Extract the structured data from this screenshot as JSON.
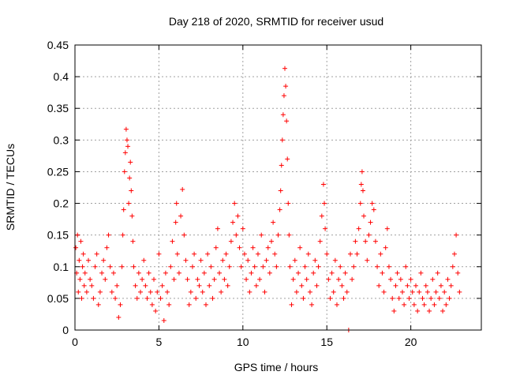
{
  "chart_data": {
    "type": "scatter",
    "title": "Day 218 of 2020, SRMTID for receiver usud",
    "xlabel": "GPS time / hours",
    "ylabel": "SRMTID / TECUs",
    "xlim": [
      0,
      24.2
    ],
    "ylim": [
      0,
      0.45
    ],
    "xticks": [
      "0",
      "5",
      "10",
      "15",
      "20"
    ],
    "xtick_values": [
      0,
      5,
      10,
      15,
      20
    ],
    "yticks": [
      "0",
      "0.05",
      "0.1",
      "0.15",
      "0.2",
      "0.25",
      "0.3",
      "0.35",
      "0.4",
      "0.45"
    ],
    "ytick_values": [
      0,
      0.05,
      0.1,
      0.15,
      0.2,
      0.25,
      0.3,
      0.35,
      0.4,
      0.45
    ],
    "grid": true,
    "marker": "plus",
    "color": "#ff0000",
    "series": [
      {
        "name": "SRMTID",
        "points": [
          [
            0.05,
            0.13
          ],
          [
            0.1,
            0.09
          ],
          [
            0.15,
            0.15
          ],
          [
            0.2,
            0.06
          ],
          [
            0.25,
            0.11
          ],
          [
            0.3,
            0.08
          ],
          [
            0.35,
            0.14
          ],
          [
            0.4,
            0.05
          ],
          [
            0.45,
            0.1
          ],
          [
            0.5,
            0.12
          ],
          [
            0.55,
            0.07
          ],
          [
            0.6,
            0.09
          ],
          [
            0.7,
            0.06
          ],
          [
            0.8,
            0.11
          ],
          [
            0.9,
            0.08
          ],
          [
            1.0,
            0.07
          ],
          [
            1.1,
            0.05
          ],
          [
            1.2,
            0.1
          ],
          [
            1.3,
            0.12
          ],
          [
            1.4,
            0.04
          ],
          [
            1.5,
            0.06
          ],
          [
            1.6,
            0.09
          ],
          [
            1.7,
            0.11
          ],
          [
            1.8,
            0.08
          ],
          [
            1.9,
            0.13
          ],
          [
            2.0,
            0.15
          ],
          [
            2.1,
            0.1
          ],
          [
            2.2,
            0.06
          ],
          [
            2.3,
            0.09
          ],
          [
            2.4,
            0.05
          ],
          [
            2.5,
            0.07
          ],
          [
            2.6,
            0.02
          ],
          [
            2.7,
            0.04
          ],
          [
            2.8,
            0.1
          ],
          [
            2.85,
            0.15
          ],
          [
            2.9,
            0.19
          ],
          [
            2.95,
            0.25
          ],
          [
            3.0,
            0.28
          ],
          [
            3.05,
            0.317
          ],
          [
            3.1,
            0.3
          ],
          [
            3.15,
            0.29
          ],
          [
            3.2,
            0.2
          ],
          [
            3.25,
            0.24
          ],
          [
            3.3,
            0.265
          ],
          [
            3.35,
            0.22
          ],
          [
            3.4,
            0.18
          ],
          [
            3.45,
            0.14
          ],
          [
            3.5,
            0.1
          ],
          [
            3.6,
            0.07
          ],
          [
            3.7,
            0.05
          ],
          [
            3.8,
            0.09
          ],
          [
            3.9,
            0.06
          ],
          [
            4.0,
            0.08
          ],
          [
            4.1,
            0.11
          ],
          [
            4.2,
            0.07
          ],
          [
            4.3,
            0.05
          ],
          [
            4.4,
            0.09
          ],
          [
            4.5,
            0.06
          ],
          [
            4.6,
            0.04
          ],
          [
            4.7,
            0.08
          ],
          [
            4.8,
            0.03
          ],
          [
            4.9,
            0.06
          ],
          [
            5.0,
            0.12
          ],
          [
            5.1,
            0.05
          ],
          [
            5.2,
            0.07
          ],
          [
            5.3,
            0.015
          ],
          [
            5.4,
            0.09
          ],
          [
            5.5,
            0.06
          ],
          [
            5.6,
            0.04
          ],
          [
            5.7,
            0.1
          ],
          [
            5.8,
            0.14
          ],
          [
            5.9,
            0.08
          ],
          [
            6.0,
            0.17
          ],
          [
            6.05,
            0.2
          ],
          [
            6.1,
            0.12
          ],
          [
            6.2,
            0.09
          ],
          [
            6.3,
            0.18
          ],
          [
            6.4,
            0.222
          ],
          [
            6.5,
            0.15
          ],
          [
            6.6,
            0.11
          ],
          [
            6.7,
            0.08
          ],
          [
            6.8,
            0.04
          ],
          [
            6.9,
            0.06
          ],
          [
            7.0,
            0.1
          ],
          [
            7.1,
            0.12
          ],
          [
            7.2,
            0.05
          ],
          [
            7.3,
            0.08
          ],
          [
            7.4,
            0.07
          ],
          [
            7.5,
            0.11
          ],
          [
            7.6,
            0.06
          ],
          [
            7.7,
            0.09
          ],
          [
            7.8,
            0.04
          ],
          [
            7.9,
            0.12
          ],
          [
            8.0,
            0.07
          ],
          [
            8.1,
            0.1
          ],
          [
            8.2,
            0.05
          ],
          [
            8.3,
            0.08
          ],
          [
            8.4,
            0.13
          ],
          [
            8.5,
            0.16
          ],
          [
            8.6,
            0.09
          ],
          [
            8.7,
            0.06
          ],
          [
            8.8,
            0.11
          ],
          [
            8.9,
            0.08
          ],
          [
            9.0,
            0.12
          ],
          [
            9.1,
            0.07
          ],
          [
            9.2,
            0.1
          ],
          [
            9.3,
            0.14
          ],
          [
            9.4,
            0.17
          ],
          [
            9.5,
            0.2
          ],
          [
            9.6,
            0.15
          ],
          [
            9.7,
            0.18
          ],
          [
            9.8,
            0.13
          ],
          [
            9.9,
            0.1
          ],
          [
            10.0,
            0.16
          ],
          [
            10.1,
            0.12
          ],
          [
            10.2,
            0.08
          ],
          [
            10.3,
            0.11
          ],
          [
            10.4,
            0.06
          ],
          [
            10.5,
            0.09
          ],
          [
            10.6,
            0.13
          ],
          [
            10.7,
            0.1
          ],
          [
            10.8,
            0.07
          ],
          [
            10.9,
            0.12
          ],
          [
            11.0,
            0.08
          ],
          [
            11.1,
            0.15
          ],
          [
            11.2,
            0.1
          ],
          [
            11.3,
            0.06
          ],
          [
            11.4,
            0.11
          ],
          [
            11.5,
            0.13
          ],
          [
            11.6,
            0.09
          ],
          [
            11.7,
            0.14
          ],
          [
            11.8,
            0.17
          ],
          [
            11.9,
            0.12
          ],
          [
            12.0,
            0.1
          ],
          [
            12.1,
            0.15
          ],
          [
            12.2,
            0.19
          ],
          [
            12.25,
            0.22
          ],
          [
            12.3,
            0.26
          ],
          [
            12.35,
            0.3
          ],
          [
            12.4,
            0.34
          ],
          [
            12.45,
            0.37
          ],
          [
            12.5,
            0.413
          ],
          [
            12.55,
            0.385
          ],
          [
            12.6,
            0.33
          ],
          [
            12.65,
            0.27
          ],
          [
            12.7,
            0.2
          ],
          [
            12.75,
            0.15
          ],
          [
            12.8,
            0.1
          ],
          [
            12.9,
            0.04
          ],
          [
            13.0,
            0.08
          ],
          [
            13.1,
            0.11
          ],
          [
            13.2,
            0.06
          ],
          [
            13.3,
            0.09
          ],
          [
            13.4,
            0.13
          ],
          [
            13.5,
            0.07
          ],
          [
            13.6,
            0.05
          ],
          [
            13.7,
            0.1
          ],
          [
            13.8,
            0.08
          ],
          [
            13.9,
            0.12
          ],
          [
            14.0,
            0.06
          ],
          [
            14.1,
            0.04
          ],
          [
            14.2,
            0.09
          ],
          [
            14.3,
            0.11
          ],
          [
            14.4,
            0.07
          ],
          [
            14.5,
            0.1
          ],
          [
            14.6,
            0.14
          ],
          [
            14.7,
            0.18
          ],
          [
            14.8,
            0.23
          ],
          [
            14.85,
            0.2
          ],
          [
            14.9,
            0.16
          ],
          [
            15.0,
            0.12
          ],
          [
            15.1,
            0.08
          ],
          [
            15.2,
            0.05
          ],
          [
            15.3,
            0.09
          ],
          [
            15.4,
            0.06
          ],
          [
            15.5,
            0.11
          ],
          [
            15.6,
            0.04
          ],
          [
            15.7,
            0.08
          ],
          [
            15.8,
            0.1
          ],
          [
            15.9,
            0.07
          ],
          [
            16.0,
            0.05
          ],
          [
            16.1,
            0.09
          ],
          [
            16.2,
            0.06
          ],
          [
            16.3,
            0.0
          ],
          [
            16.4,
            0.12
          ],
          [
            16.5,
            0.08
          ],
          [
            16.6,
            0.1
          ],
          [
            16.7,
            0.14
          ],
          [
            16.8,
            0.12
          ],
          [
            16.9,
            0.16
          ],
          [
            17.0,
            0.2
          ],
          [
            17.05,
            0.23
          ],
          [
            17.1,
            0.25
          ],
          [
            17.15,
            0.22
          ],
          [
            17.2,
            0.18
          ],
          [
            17.3,
            0.14
          ],
          [
            17.4,
            0.11
          ],
          [
            17.5,
            0.15
          ],
          [
            17.6,
            0.17
          ],
          [
            17.7,
            0.2
          ],
          [
            17.8,
            0.19
          ],
          [
            17.9,
            0.14
          ],
          [
            18.0,
            0.1
          ],
          [
            18.1,
            0.07
          ],
          [
            18.2,
            0.12
          ],
          [
            18.3,
            0.09
          ],
          [
            18.4,
            0.06
          ],
          [
            18.5,
            0.13
          ],
          [
            18.6,
            0.16
          ],
          [
            18.7,
            0.1
          ],
          [
            18.8,
            0.08
          ],
          [
            18.9,
            0.05
          ],
          [
            19.0,
            0.03
          ],
          [
            19.1,
            0.07
          ],
          [
            19.2,
            0.09
          ],
          [
            19.3,
            0.05
          ],
          [
            19.4,
            0.08
          ],
          [
            19.5,
            0.06
          ],
          [
            19.6,
            0.04
          ],
          [
            19.7,
            0.1
          ],
          [
            19.8,
            0.07
          ],
          [
            19.9,
            0.05
          ],
          [
            20.0,
            0.08
          ],
          [
            20.1,
            0.06
          ],
          [
            20.2,
            0.04
          ],
          [
            20.3,
            0.07
          ],
          [
            20.4,
            0.03
          ],
          [
            20.5,
            0.06
          ],
          [
            20.6,
            0.09
          ],
          [
            20.7,
            0.05
          ],
          [
            20.8,
            0.04
          ],
          [
            20.9,
            0.07
          ],
          [
            21.0,
            0.06
          ],
          [
            21.1,
            0.03
          ],
          [
            21.2,
            0.05
          ],
          [
            21.3,
            0.08
          ],
          [
            21.4,
            0.04
          ],
          [
            21.5,
            0.06
          ],
          [
            21.6,
            0.09
          ],
          [
            21.7,
            0.05
          ],
          [
            21.8,
            0.07
          ],
          [
            21.9,
            0.03
          ],
          [
            22.0,
            0.06
          ],
          [
            22.1,
            0.04
          ],
          [
            22.2,
            0.08
          ],
          [
            22.3,
            0.05
          ],
          [
            22.4,
            0.07
          ],
          [
            22.5,
            0.1
          ],
          [
            22.6,
            0.12
          ],
          [
            22.7,
            0.15
          ],
          [
            22.8,
            0.09
          ],
          [
            22.9,
            0.06
          ]
        ]
      }
    ]
  }
}
